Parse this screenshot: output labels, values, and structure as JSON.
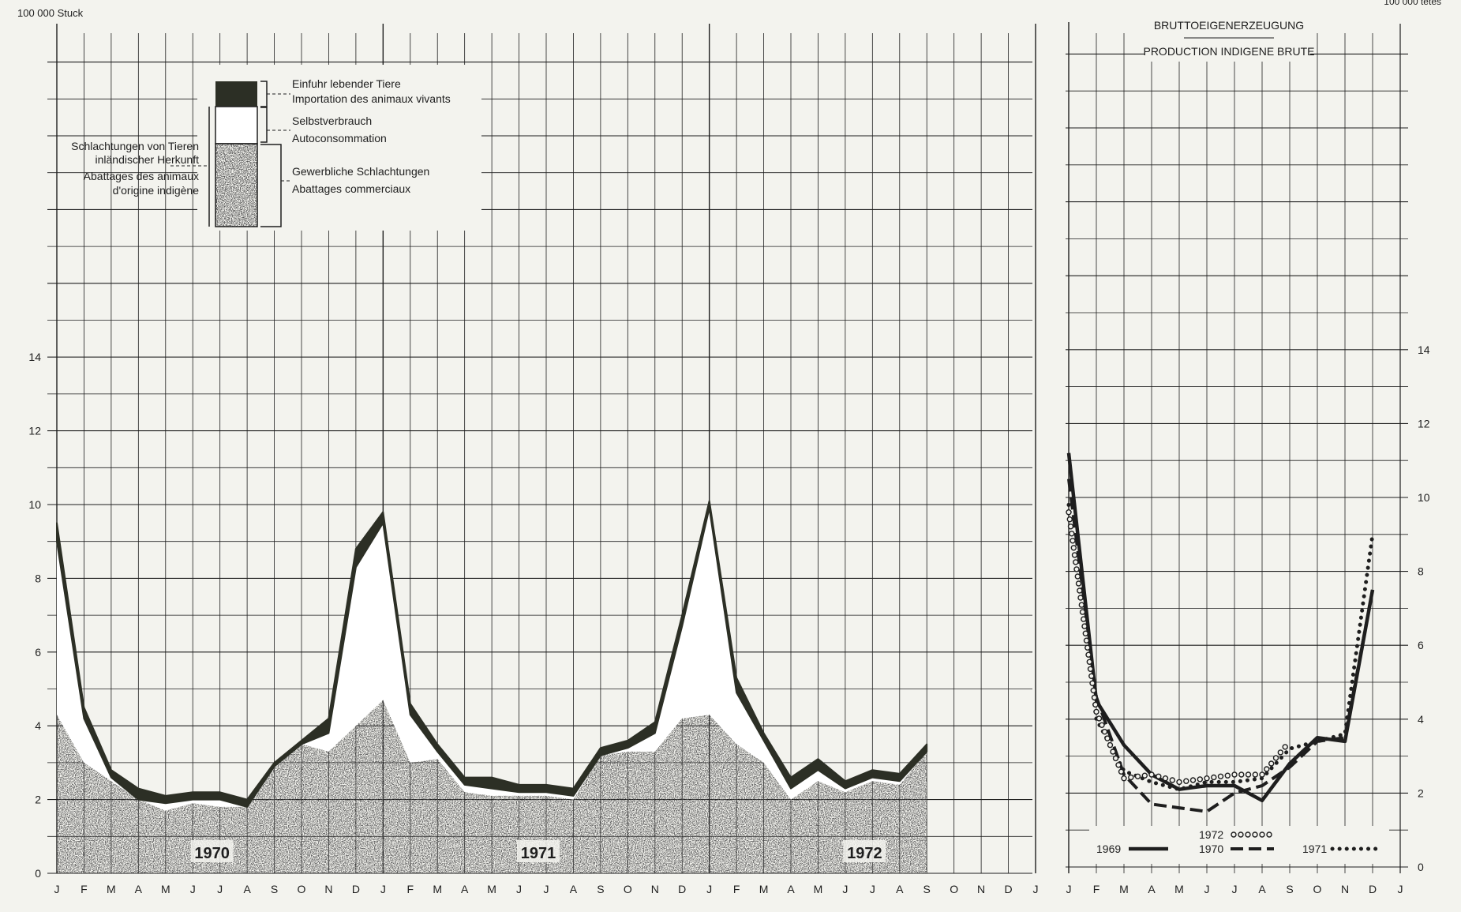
{
  "page": {
    "unit_left": "100 000 Stuck",
    "unit_right": "100 000 tetes",
    "right_title_de": "BRUTTOEIGENERZEUGUNG",
    "right_title_fr": "PRODUCTION INDIGENE BRUTE"
  },
  "legend": {
    "import_de": "Einfuhr lebender Tiere",
    "import_fr": "Importation des animaux vivants",
    "self_de": "Selbstverbrauch",
    "self_fr": "Autoconsommation",
    "commercial_de": "Gewerbliche Schlachtungen",
    "commercial_fr": "Abattages commerciaux",
    "domestic_line1": "Schlachtungen von Tieren",
    "domestic_line2": "inländischer Herkunft",
    "domestic_line3": "Abattages des animaux",
    "domestic_line4": "d'origine indigène",
    "colors": {
      "import": "#2c2f25",
      "self": "#ffffff",
      "commercial": "#6b6b66"
    }
  },
  "chart_data": [
    {
      "type": "area",
      "unit": "100 000 Stuck",
      "ylim": [
        0,
        22
      ],
      "y_ticks": [
        "0",
        "2",
        "4",
        "6",
        "8",
        "10",
        "12",
        "14"
      ],
      "months": [
        "J",
        "F",
        "M",
        "A",
        "M",
        "J",
        "J",
        "A",
        "S",
        "O",
        "N",
        "D",
        "J",
        "F",
        "M",
        "A",
        "M",
        "J",
        "J",
        "A",
        "S",
        "O",
        "N",
        "D",
        "J",
        "F",
        "M",
        "A",
        "M",
        "J",
        "J",
        "A",
        "S",
        "O",
        "N",
        "D",
        "J"
      ],
      "year_labels": [
        {
          "label": "1970",
          "month_index": 6
        },
        {
          "label": "1971",
          "month_index": 18
        },
        {
          "label": "1972",
          "month_index": 30
        }
      ],
      "series": [
        {
          "name": "Gewerbliche Schlachtungen",
          "values": [
            4.3,
            3.0,
            2.5,
            2.0,
            1.7,
            1.9,
            1.8,
            1.8,
            3.0,
            3.5,
            3.3,
            4.0,
            4.7,
            3.0,
            3.1,
            2.2,
            2.1,
            2.1,
            2.1,
            2.0,
            3.2,
            3.3,
            3.3,
            4.2,
            4.3,
            3.5,
            3.0,
            2.0,
            2.5,
            2.2,
            2.5,
            2.4,
            3.3
          ]
        },
        {
          "name": "Selbstverbrauch",
          "values": [
            9.0,
            4.2,
            2.6,
            2.0,
            1.9,
            2.0,
            2.0,
            1.8,
            2.9,
            3.5,
            3.8,
            8.3,
            9.5,
            4.3,
            3.3,
            2.4,
            2.3,
            2.2,
            2.2,
            2.1,
            3.2,
            3.4,
            3.8,
            6.7,
            9.9,
            4.9,
            3.6,
            2.3,
            2.8,
            2.3,
            2.6,
            2.5,
            3.3
          ]
        },
        {
          "name": "Einfuhr lebender Tiere",
          "values": [
            9.5,
            4.5,
            2.8,
            2.3,
            2.1,
            2.2,
            2.2,
            2.0,
            3.0,
            3.6,
            4.2,
            8.8,
            9.8,
            4.6,
            3.5,
            2.6,
            2.6,
            2.4,
            2.4,
            2.3,
            3.4,
            3.6,
            4.1,
            7.0,
            10.1,
            5.3,
            3.8,
            2.6,
            3.1,
            2.5,
            2.8,
            2.7,
            3.5
          ]
        }
      ]
    },
    {
      "type": "line",
      "title": "BRUTTOEIGENERZEUGUNG / PRODUCTION INDIGENE BRUTE",
      "unit": "100 000 tetes",
      "ylim": [
        0,
        23
      ],
      "y_ticks": [
        "0",
        "2",
        "4",
        "6",
        "8",
        "10",
        "12",
        "14"
      ],
      "months": [
        "J",
        "F",
        "M",
        "A",
        "M",
        "J",
        "J",
        "A",
        "S",
        "O",
        "N",
        "D",
        "J"
      ],
      "series": [
        {
          "name": "1969",
          "style": "solid",
          "values": [
            11.2,
            4.5,
            3.3,
            2.5,
            2.1,
            2.2,
            2.2,
            1.8,
            2.8,
            3.5,
            3.4,
            7.5
          ]
        },
        {
          "name": "1970",
          "style": "dashed",
          "values": [
            10.5,
            4.6,
            2.5,
            1.7,
            1.6,
            1.5,
            2.0,
            2.2,
            2.7,
            3.4,
            3.5,
            7.5
          ]
        },
        {
          "name": "1971",
          "style": "dotted",
          "values": [
            9.8,
            4.0,
            2.6,
            2.3,
            2.1,
            2.3,
            2.3,
            2.4,
            3.2,
            3.4,
            3.6,
            9.0
          ]
        },
        {
          "name": "1972",
          "style": "circles",
          "values": [
            9.6,
            4.2,
            2.4,
            2.5,
            2.3,
            2.4,
            2.5,
            2.5,
            3.4
          ]
        }
      ],
      "legend_labels": [
        "1969",
        "1970",
        "1971",
        "1972"
      ]
    }
  ]
}
